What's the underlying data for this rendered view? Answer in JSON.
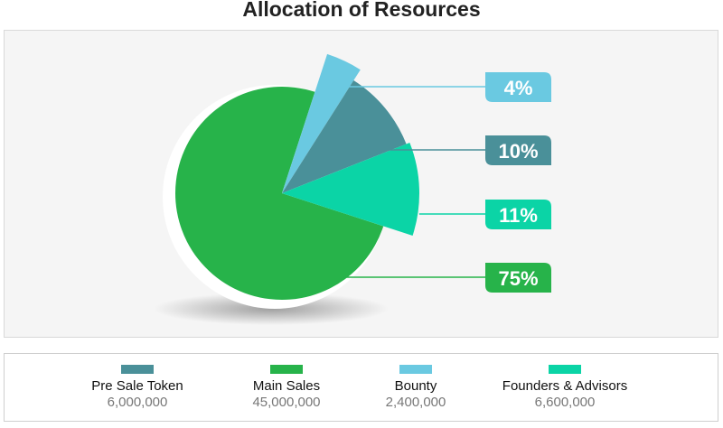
{
  "chart_data": {
    "type": "pie",
    "title": "Allocation of Resources",
    "slices": [
      {
        "name": "Main Sales",
        "value": 45000000,
        "percent_label": "75%",
        "color": "#27b34a"
      },
      {
        "name": "Bounty",
        "value": 2400000,
        "percent_label": "4%",
        "color": "#6ac9e1"
      },
      {
        "name": "Pre Sale Token",
        "value": 6000000,
        "percent_label": "10%",
        "color": "#4a9099"
      },
      {
        "name": "Founders & Advisors",
        "value": 6600000,
        "percent_label": "11%",
        "color": "#0bd4a6"
      }
    ],
    "legend": [
      {
        "name": "Pre Sale Token",
        "value_label": "6,000,000",
        "color": "#4a9099"
      },
      {
        "name": "Main Sales",
        "value_label": "45,000,000",
        "color": "#27b34a"
      },
      {
        "name": "Bounty",
        "value_label": "2,400,000",
        "color": "#6ac9e1"
      },
      {
        "name": "Founders & Advisors",
        "value_label": "6,600,000",
        "color": "#0bd4a6"
      }
    ],
    "legend_position": "bottom"
  }
}
